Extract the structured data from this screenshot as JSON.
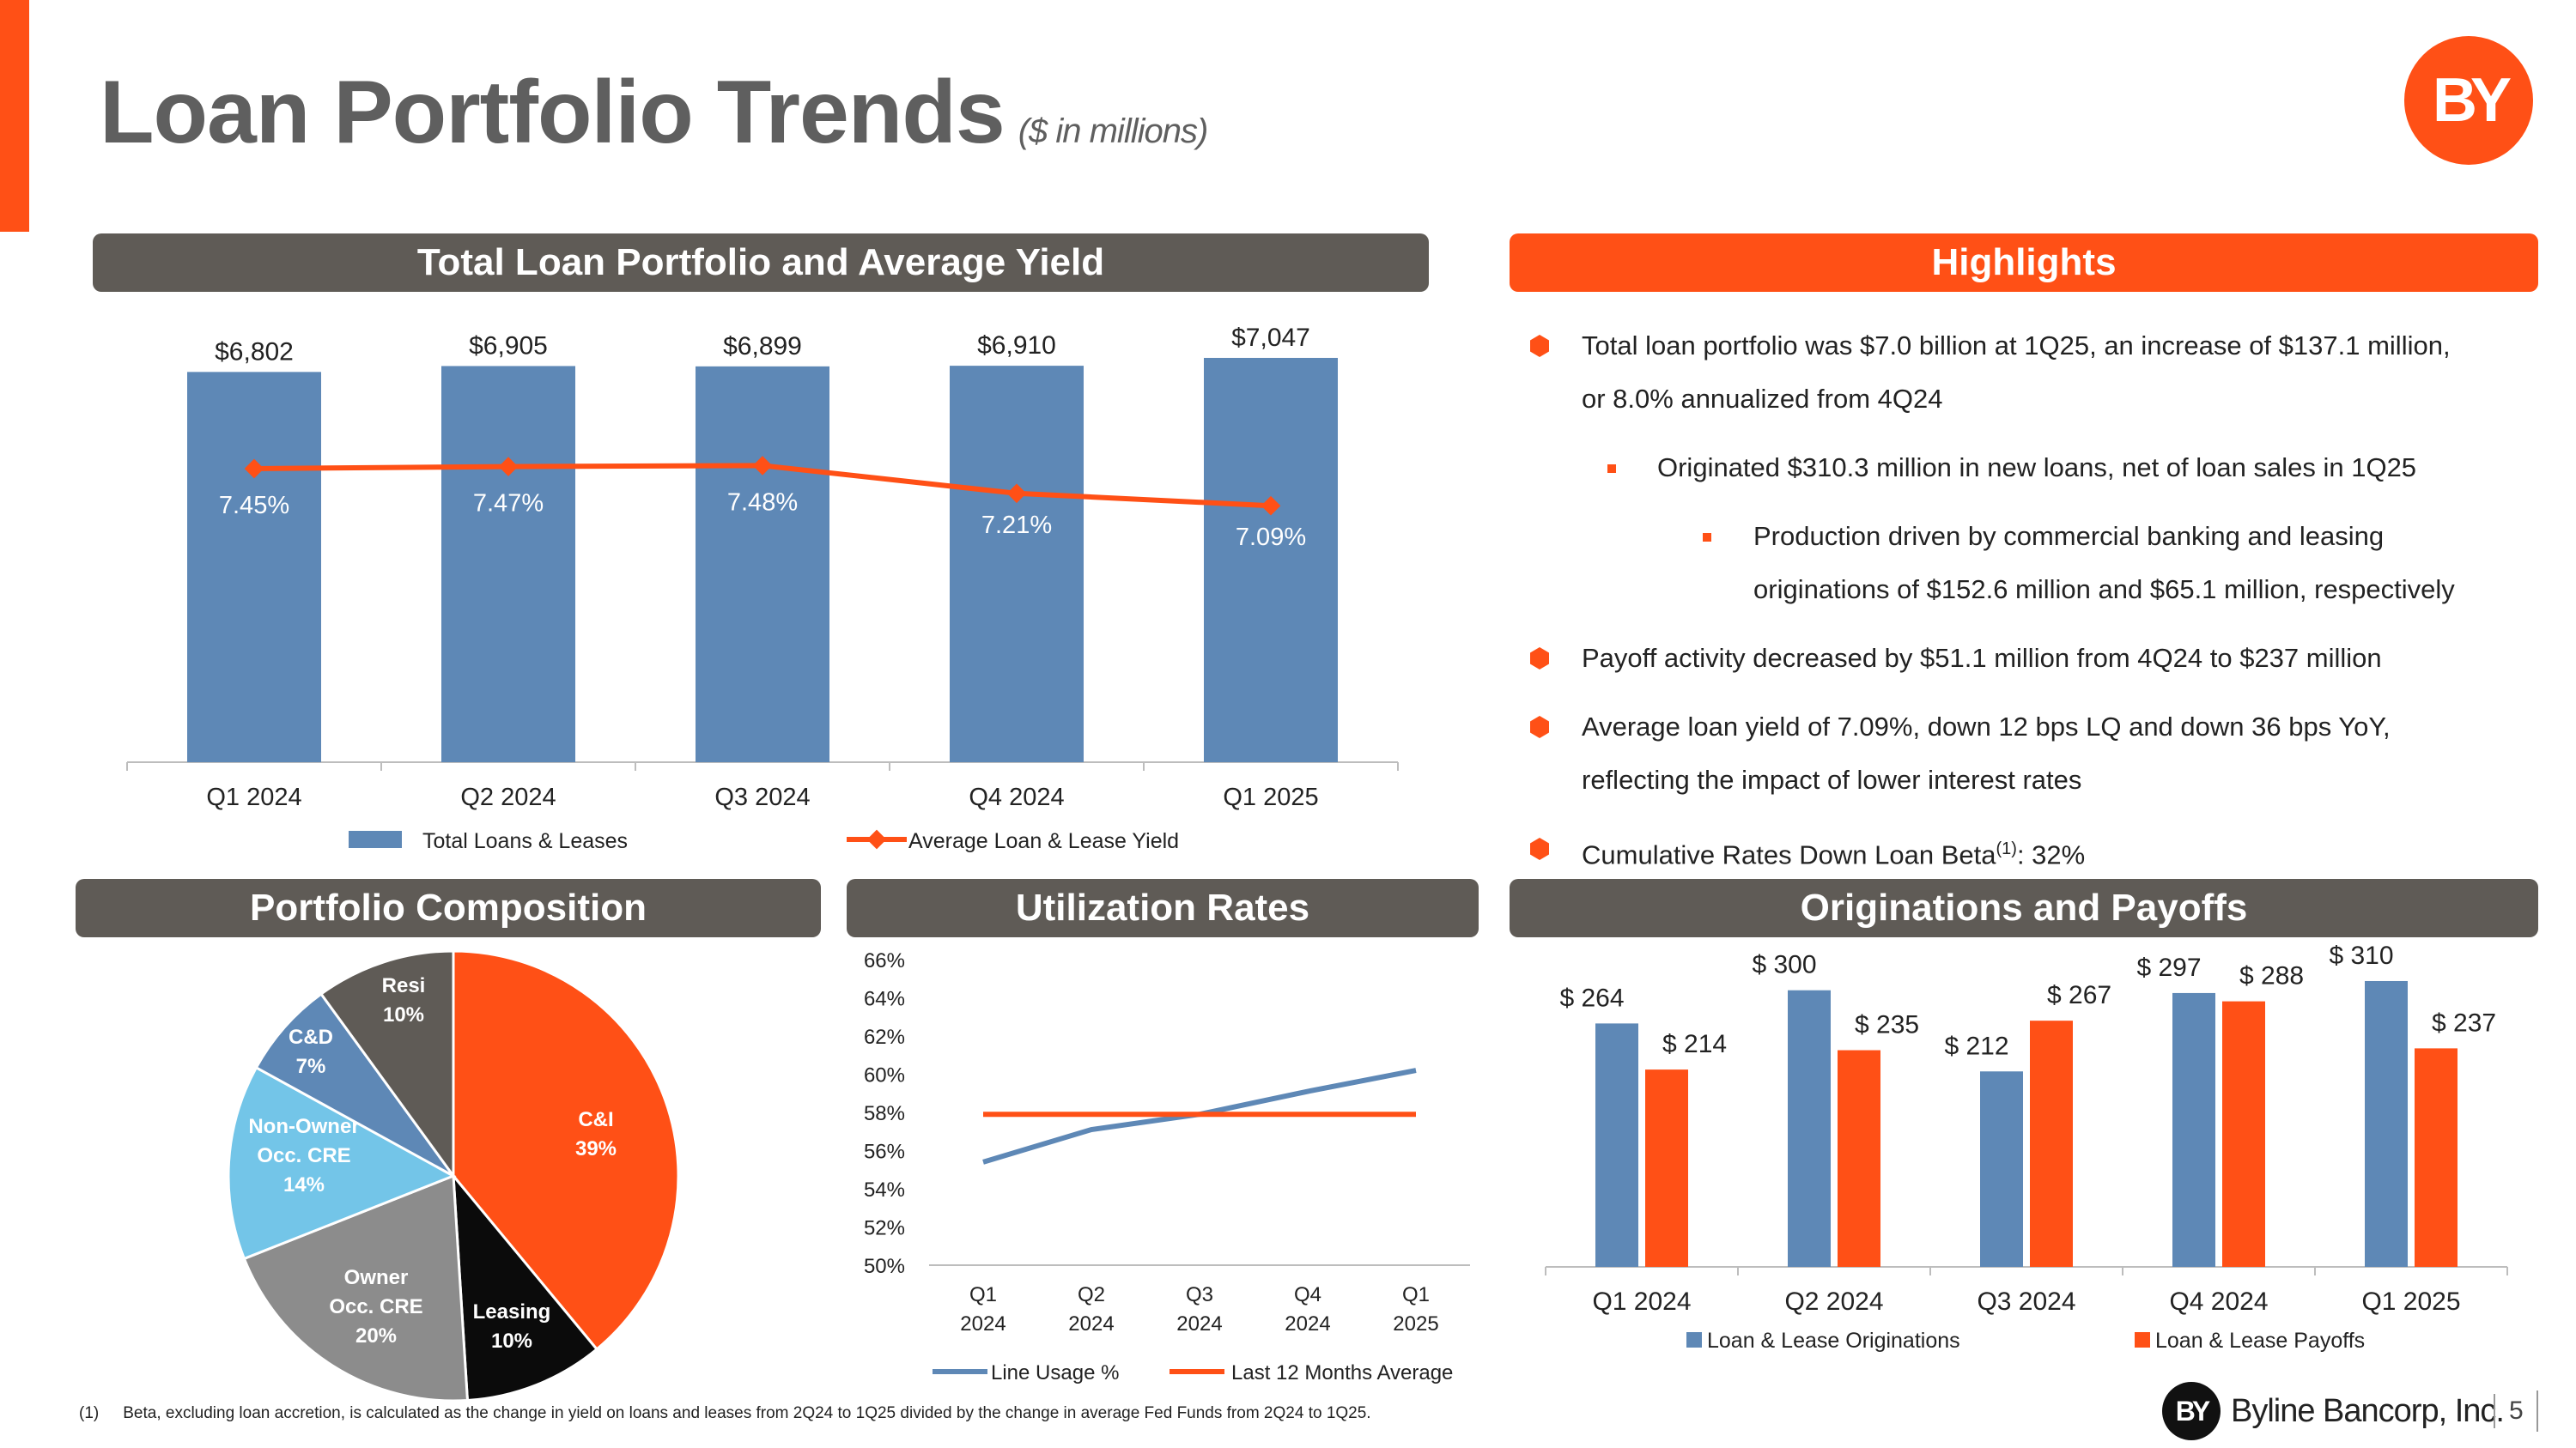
{
  "header": {
    "title": "Loan Portfolio Trends",
    "subtitle": "($ in millions)",
    "logo_text": "BY"
  },
  "sections": {
    "total_loans": "Total Loan Portfolio and Average Yield",
    "highlights": "Highlights",
    "composition": "Portfolio Composition",
    "utilization": "Utilization Rates",
    "originations": "Originations and Payoffs"
  },
  "highlights": {
    "item1": "Total loan portfolio was $7.0 billion at 1Q25, an increase of $137.1 million, or 8.0% annualized from 4Q24",
    "item1_line1": "Total loan portfolio was $7.0 billion at 1Q25, an increase of $137.1 million,",
    "item1_line2": "or 8.0% annualized from 4Q24",
    "item1a": "Originated $310.3 million in new loans, net of loan sales in 1Q25",
    "item1b": "Production driven by commercial banking and leasing originations of $152.6 million and $65.1 million, respectively",
    "item1b_line1": "Production driven by commercial banking and leasing",
    "item1b_line2": "originations of $152.6 million and $65.1 million, respectively",
    "item2": "Payoff activity decreased by $51.1 million from 4Q24 to $237 million",
    "item3": "Average loan yield of 7.09%, down 12 bps LQ and down 36 bps YoY, reflecting the impact of lower interest rates",
    "item3_line1": "Average loan yield of 7.09%, down 12 bps LQ and down 36 bps YoY,",
    "item3_line2": "reflecting the impact of lower interest rates",
    "item4_prefix": "Cumulative Rates Down Loan Beta",
    "item4_sup": "(1)",
    "item4_suffix": ": 32%"
  },
  "footer": {
    "footnote_num": "(1)",
    "footnote": "Beta, excluding loan accretion, is calculated as the change in yield on loans and leases from 2Q24 to 1Q25 divided by the change in average Fed Funds from 2Q24 to 1Q25.",
    "brand_mark": "BY",
    "brand_name": "Byline Bancorp, Inc.",
    "page_number": "5"
  },
  "colors": {
    "orange": "#FF5016",
    "blue": "#5E88B6",
    "gray": "#5F5B56"
  },
  "chart_data": [
    {
      "id": "loan_portfolio",
      "type": "bar",
      "categories": [
        "Q1 2024",
        "Q2 2024",
        "Q3 2024",
        "Q4 2024",
        "Q1 2025"
      ],
      "series": [
        {
          "name": "Total Loans & Leases",
          "type": "bar",
          "values": [
            6802,
            6905,
            6899,
            6910,
            7047
          ],
          "labels": [
            "$6,802",
            "$6,905",
            "$6,899",
            "$6,910",
            "$7,047"
          ]
        },
        {
          "name": "Average Loan & Lease Yield",
          "type": "line",
          "values": [
            7.45,
            7.47,
            7.48,
            7.21,
            7.09
          ],
          "labels": [
            "7.45%",
            "7.47%",
            "7.48%",
            "7.21%",
            "7.09%"
          ]
        }
      ],
      "ylim": [
        0,
        7600
      ]
    },
    {
      "id": "portfolio_composition",
      "type": "pie",
      "slices": [
        {
          "label": "C&I",
          "value": 39,
          "pct": "39%",
          "color": "#FF5016"
        },
        {
          "label": "Leasing",
          "value": 10,
          "pct": "10%",
          "color": "#0B0B0B"
        },
        {
          "label": "Owner Occ. CRE",
          "value": 20,
          "pct": "20%",
          "color": "#8C8C8C"
        },
        {
          "label": "Non-Owner Occ. CRE",
          "value": 14,
          "pct": "14%",
          "color": "#73C5E8"
        },
        {
          "label": "C&D",
          "value": 7,
          "pct": "7%",
          "color": "#5E88B6"
        },
        {
          "label": "Resi",
          "value": 10,
          "pct": "10%",
          "color": "#5F5B56"
        }
      ]
    },
    {
      "id": "utilization_rates",
      "type": "line",
      "categories": [
        "Q1 2024",
        "Q2 2024",
        "Q3 2024",
        "Q4 2024",
        "Q1 2025"
      ],
      "category_lines": [
        [
          "Q1",
          "2024"
        ],
        [
          "Q2",
          "2024"
        ],
        [
          "Q3",
          "2024"
        ],
        [
          "Q4",
          "2024"
        ],
        [
          "Q1",
          "2025"
        ]
      ],
      "series": [
        {
          "name": "Line Usage %",
          "values": [
            55.4,
            57.1,
            57.9,
            59.1,
            60.2
          ],
          "color": "#5E88B6"
        },
        {
          "name": "Last 12 Months Average",
          "values": [
            57.9,
            57.9,
            57.9,
            57.9,
            57.9
          ],
          "color": "#FF5016"
        }
      ],
      "ylim": [
        50,
        66
      ],
      "yticks": [
        "50%",
        "52%",
        "54%",
        "56%",
        "58%",
        "60%",
        "62%",
        "64%",
        "66%"
      ]
    },
    {
      "id": "originations_payoffs",
      "type": "bar",
      "categories": [
        "Q1 2024",
        "Q2 2024",
        "Q3 2024",
        "Q4 2024",
        "Q1 2025"
      ],
      "series": [
        {
          "name": "Loan & Lease Originations",
          "values": [
            264,
            300,
            212,
            297,
            310
          ],
          "labels": [
            "$ 264",
            "$ 300",
            "$ 212",
            "$ 297",
            "$ 310"
          ],
          "color": "#5E88B6"
        },
        {
          "name": "Loan & Lease Payoffs",
          "values": [
            214,
            235,
            267,
            288,
            237
          ],
          "labels": [
            "$ 214",
            "$ 235",
            "$ 267",
            "$ 288",
            "$ 237"
          ],
          "color": "#FF5016"
        }
      ],
      "ylim": [
        0,
        350
      ]
    }
  ]
}
